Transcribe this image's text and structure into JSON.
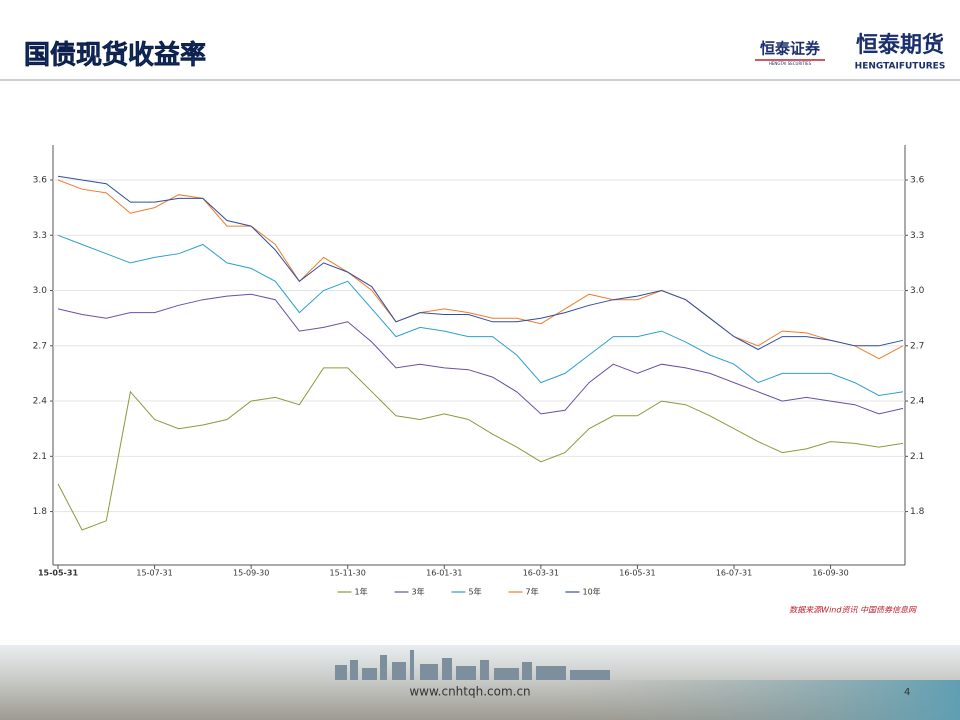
{
  "header": {
    "title": "国债现货收益率",
    "logo1": "恒泰证券",
    "logo1_sub": "HENGTAI SECURITIES",
    "logo2": "恒泰期货",
    "logo2_sub": "HENGTAIFUTURES"
  },
  "footer": {
    "url": "www.cnhtqh.com.cn",
    "page": "4"
  },
  "chart_data": {
    "type": "line",
    "source": "数据来源Wind资讯 中国债券信息网",
    "categories": [
      "15-05-31",
      null,
      null,
      null,
      "15-07-31",
      null,
      null,
      null,
      "15-09-30",
      null,
      null,
      null,
      "15-11-30",
      null,
      null,
      null,
      "16-01-31",
      null,
      null,
      null,
      "16-03-31",
      null,
      null,
      null,
      "16-05-31",
      null,
      null,
      null,
      "16-07-31",
      null,
      null,
      null,
      "16-09-30",
      null,
      null,
      null
    ],
    "ylim": [
      1.51,
      3.79
    ],
    "yticks": [
      1.8,
      2.1,
      2.4,
      2.7,
      {
        "value": 3,
        "label": "3.0"
      },
      3.3,
      3.6
    ],
    "grid": true,
    "series": [
      {
        "name": "1年",
        "color": "#8a9a3b",
        "values": [
          1.95,
          1.7,
          1.75,
          2.45,
          2.3,
          2.25,
          2.27,
          2.3,
          2.4,
          2.42,
          2.38,
          2.58,
          2.58,
          2.45,
          2.32,
          2.3,
          2.33,
          2.3,
          2.22,
          2.15,
          2.07,
          2.12,
          2.25,
          2.32,
          2.32,
          2.4,
          2.38,
          2.32,
          2.25,
          2.18,
          2.12,
          2.14,
          2.18,
          2.17,
          2.15,
          2.17
        ]
      },
      {
        "name": "3年",
        "color": "#6a4fa3",
        "values": [
          2.9,
          2.87,
          2.85,
          2.88,
          2.88,
          2.92,
          2.95,
          2.97,
          2.98,
          2.95,
          2.78,
          2.8,
          2.83,
          2.72,
          2.58,
          2.6,
          2.58,
          2.57,
          2.53,
          2.45,
          2.33,
          2.35,
          2.5,
          2.6,
          2.55,
          2.6,
          2.58,
          2.55,
          2.5,
          2.45,
          2.4,
          2.42,
          2.4,
          2.38,
          2.33,
          2.36
        ]
      },
      {
        "name": "5年",
        "color": "#2b9fd1",
        "values": [
          3.3,
          3.25,
          3.2,
          3.15,
          3.18,
          3.2,
          3.25,
          3.15,
          3.12,
          3.05,
          2.88,
          3.0,
          3.05,
          2.9,
          2.75,
          2.8,
          2.78,
          2.75,
          2.75,
          2.65,
          2.5,
          2.55,
          2.65,
          2.75,
          2.75,
          2.78,
          2.72,
          2.65,
          2.6,
          2.5,
          2.55,
          2.55,
          2.55,
          2.5,
          2.43,
          2.45
        ]
      },
      {
        "name": "7年",
        "color": "#f07c2a",
        "values": [
          3.6,
          3.55,
          3.53,
          3.42,
          3.45,
          3.52,
          3.5,
          3.35,
          3.35,
          3.25,
          3.05,
          3.18,
          3.1,
          3.0,
          2.83,
          2.88,
          2.9,
          2.88,
          2.85,
          2.85,
          2.82,
          2.9,
          2.98,
          2.95,
          2.95,
          3.0,
          2.95,
          2.85,
          2.75,
          2.7,
          2.78,
          2.77,
          2.73,
          2.7,
          2.63,
          2.7
        ]
      },
      {
        "name": "10年",
        "color": "#2e4e9e",
        "values": [
          3.62,
          3.6,
          3.58,
          3.48,
          3.48,
          3.5,
          3.5,
          3.38,
          3.35,
          3.22,
          3.05,
          3.15,
          3.1,
          3.02,
          2.83,
          2.88,
          2.87,
          2.87,
          2.83,
          2.83,
          2.85,
          2.88,
          2.92,
          2.95,
          2.97,
          3.0,
          2.95,
          2.85,
          2.75,
          2.68,
          2.75,
          2.75,
          2.73,
          2.7,
          2.7,
          2.73
        ]
      }
    ]
  }
}
